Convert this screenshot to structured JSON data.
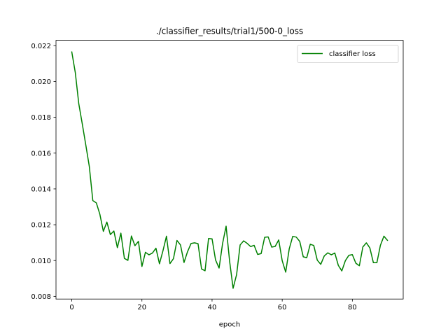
{
  "chart_data": {
    "type": "line",
    "title": "./classifier_results/trial1/500-0_loss",
    "xlabel": "epoch",
    "ylabel": "",
    "xlim": [
      -4.5,
      94.5
    ],
    "ylim": [
      0.00785,
      0.0223
    ],
    "xticks": [
      0,
      20,
      40,
      60,
      80
    ],
    "xtick_labels": [
      "0",
      "20",
      "40",
      "60",
      "80"
    ],
    "yticks": [
      0.008,
      0.01,
      0.012,
      0.014,
      0.016,
      0.018,
      0.02,
      0.022
    ],
    "ytick_labels": [
      "0.008",
      "0.010",
      "0.012",
      "0.014",
      "0.016",
      "0.018",
      "0.020",
      "0.022"
    ],
    "grid": false,
    "legend_position": "upper right",
    "series": [
      {
        "name": "classifier loss",
        "color": "#008000",
        "x": [
          0,
          1,
          2,
          3,
          4,
          5,
          6,
          7,
          8,
          9,
          10,
          11,
          12,
          13,
          14,
          15,
          16,
          17,
          18,
          19,
          20,
          21,
          22,
          23,
          24,
          25,
          26,
          27,
          28,
          29,
          30,
          31,
          32,
          33,
          34,
          35,
          36,
          37,
          38,
          39,
          40,
          41,
          42,
          43,
          44,
          45,
          46,
          47,
          48,
          49,
          50,
          51,
          52,
          53,
          54,
          55,
          56,
          57,
          58,
          59,
          60,
          61,
          62,
          63,
          64,
          65,
          66,
          67,
          68,
          69,
          70,
          71,
          72,
          73,
          74,
          75,
          76,
          77,
          78,
          79,
          80,
          81,
          82,
          83,
          84,
          85,
          86,
          87,
          88,
          89,
          90
        ],
        "y": [
          0.02165,
          0.0205,
          0.01875,
          0.01762,
          0.01645,
          0.01525,
          0.01335,
          0.01322,
          0.01259,
          0.01163,
          0.01215,
          0.01145,
          0.01165,
          0.01072,
          0.01153,
          0.01012,
          0.01001,
          0.01137,
          0.01083,
          0.01107,
          0.00967,
          0.01046,
          0.01032,
          0.01042,
          0.01069,
          0.00982,
          0.01055,
          0.01136,
          0.00983,
          0.01011,
          0.01112,
          0.01087,
          0.00989,
          0.01049,
          0.01095,
          0.01099,
          0.01094,
          0.00953,
          0.00943,
          0.01123,
          0.01121,
          0.01003,
          0.00958,
          0.01095,
          0.01192,
          0.00997,
          0.00845,
          0.00922,
          0.01087,
          0.0111,
          0.01096,
          0.01078,
          0.01085,
          0.01034,
          0.01039,
          0.0113,
          0.01132,
          0.01075,
          0.01079,
          0.01115,
          0.00999,
          0.00935,
          0.01065,
          0.01135,
          0.01131,
          0.01107,
          0.01021,
          0.01016,
          0.01091,
          0.01084,
          0.01002,
          0.00979,
          0.01026,
          0.01043,
          0.01032,
          0.01042,
          0.00973,
          0.00942,
          0.00999,
          0.01029,
          0.01033,
          0.00985,
          0.00971,
          0.01076,
          0.01099,
          0.0107,
          0.00988,
          0.00988,
          0.01085,
          0.01136,
          0.01113
        ]
      }
    ]
  }
}
